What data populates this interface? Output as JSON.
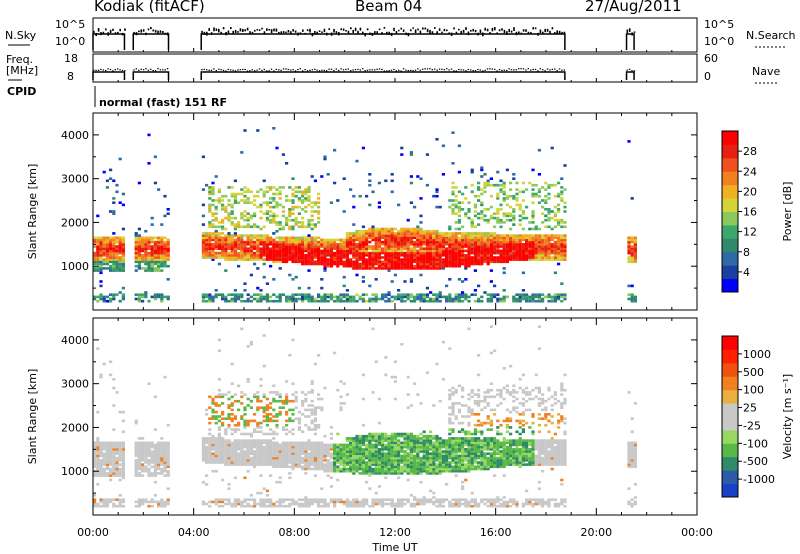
{
  "header": {
    "station": "Kodiak (fitACF)",
    "beam": "Beam 04",
    "date": "27/Aug/2011"
  },
  "params": {
    "nsky_label": "N.Sky",
    "nsearch_label": "N.Search",
    "freq_label_1": "Freq.",
    "freq_label_2": "[MHz]",
    "nave_label": "Nave",
    "cpid_label": "CPID",
    "cpid_value": "normal (fast) 151 RF",
    "nsky_ticks": [
      "10^5",
      "10^0"
    ],
    "nsearch_ticks": [
      "10^5",
      "10^0"
    ],
    "freq_ticks": [
      "18",
      "8"
    ],
    "nave_ticks": [
      "60",
      "0"
    ],
    "segments": [
      [
        0.0,
        1.25
      ],
      [
        1.6,
        3.0
      ],
      [
        4.3,
        18.75
      ],
      [
        21.2,
        21.5
      ]
    ]
  },
  "chart_data": [
    {
      "type": "heatmap",
      "name": "power",
      "ylabel": "Slant Range [km]",
      "xlabel": "",
      "ylim": [
        0,
        4500
      ],
      "xlim": [
        0,
        24
      ],
      "yticks": [
        "4000",
        "3000",
        "2000",
        "1000"
      ],
      "colorbar_label": "Power [dB]",
      "colorbar_ticks": [
        "28",
        "24",
        "20",
        "16",
        "12",
        "8",
        "4"
      ],
      "colorbar_colors": [
        "#0000ff",
        "#1a3fa0",
        "#2e6aa6",
        "#2e8a6a",
        "#3aa86a",
        "#8cc85a",
        "#d4d43a",
        "#f0b020",
        "#f08020",
        "#f05020",
        "#e82010",
        "#ff0000"
      ]
    },
    {
      "type": "heatmap",
      "name": "velocity",
      "ylabel": "Slant Range [km]",
      "xlabel": "Time UT",
      "ylim": [
        0,
        4500
      ],
      "xlim": [
        0,
        24
      ],
      "yticks": [
        "4000",
        "3000",
        "2000",
        "1000"
      ],
      "xticks": [
        "00:00",
        "04:00",
        "08:00",
        "12:00",
        "16:00",
        "20:00",
        "00:00"
      ],
      "colorbar_label": "Velocity [m s⁻¹]",
      "colorbar_ticks": [
        "1000",
        "500",
        "100",
        "25",
        "-25",
        "-100",
        "-500",
        "-1000"
      ],
      "colorbar_colors": [
        "#1a3fc8",
        "#2a5aa8",
        "#2e8a6a",
        "#58b848",
        "#98d860",
        "#c8c8c8",
        "#c8c8c8",
        "#e8b040",
        "#f08020",
        "#f05010",
        "#ff2000",
        "#ff0000"
      ]
    }
  ]
}
